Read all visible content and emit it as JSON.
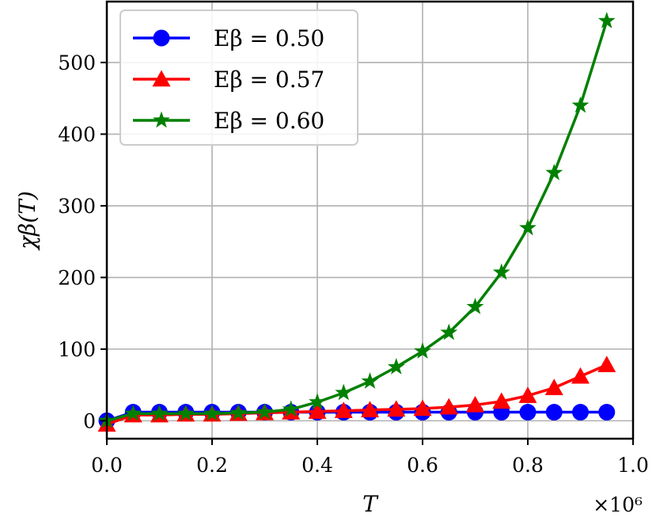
{
  "chart_data": {
    "type": "line",
    "title": "",
    "xlabel": "T",
    "ylabel": "χβ(T)",
    "x_multiplier_label": "×10⁶",
    "xlim": [
      0.0,
      1.0
    ],
    "ylim": [
      -25,
      585
    ],
    "x_ticks": [
      0.0,
      0.2,
      0.4,
      0.6,
      0.8,
      1.0
    ],
    "x_tick_labels": [
      "0.0",
      "0.2",
      "0.4",
      "0.6",
      "0.8",
      "1.0"
    ],
    "y_ticks": [
      0,
      100,
      200,
      300,
      400,
      500
    ],
    "y_tick_labels": [
      "0",
      "100",
      "200",
      "300",
      "400",
      "500"
    ],
    "grid": true,
    "legend_position": "top-left",
    "x": [
      0.0,
      0.05,
      0.1,
      0.15,
      0.2,
      0.25,
      0.3,
      0.35,
      0.4,
      0.45,
      0.5,
      0.55,
      0.6,
      0.65,
      0.7,
      0.75,
      0.8,
      0.85,
      0.9,
      0.95
    ],
    "series": [
      {
        "name": "Eβ = 0.50",
        "color": "#0000ff",
        "marker": "circle",
        "values": [
          0,
          12,
          12,
          12,
          12,
          12,
          12,
          12,
          12,
          12,
          12,
          12,
          12,
          12,
          12,
          12,
          12,
          12,
          12,
          12
        ]
      },
      {
        "name": "Eβ = 0.57",
        "color": "#ff0000",
        "marker": "triangle",
        "values": [
          -5,
          8,
          8,
          9,
          9,
          10,
          11,
          12,
          13,
          14,
          15,
          16,
          17,
          19,
          22,
          27,
          35,
          46,
          62,
          78
        ]
      },
      {
        "name": "Eβ = 0.60",
        "color": "#008000",
        "marker": "star",
        "values": [
          0,
          10,
          10,
          10,
          10,
          11,
          12,
          16,
          26,
          39,
          55,
          75,
          97,
          123,
          159,
          207,
          269,
          346,
          440,
          558
        ]
      }
    ]
  }
}
